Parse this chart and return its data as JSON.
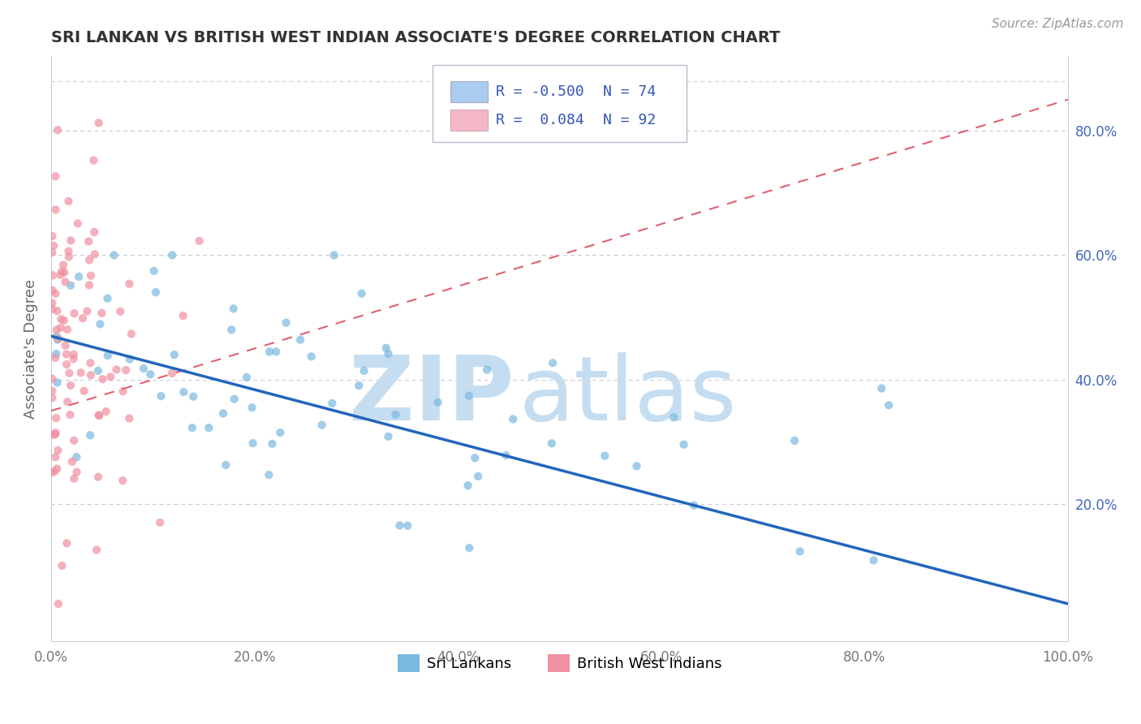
{
  "title": "SRI LANKAN VS BRITISH WEST INDIAN ASSOCIATE'S DEGREE CORRELATION CHART",
  "source_text": "Source: ZipAtlas.com",
  "ylabel": "Associate's Degree",
  "xlim": [
    0.0,
    1.0
  ],
  "ylim": [
    -0.02,
    0.92
  ],
  "xtick_labels": [
    "0.0%",
    "20.0%",
    "40.0%",
    "60.0%",
    "80.0%",
    "100.0%"
  ],
  "xtick_vals": [
    0.0,
    0.2,
    0.4,
    0.6,
    0.8,
    1.0
  ],
  "ytick_labels_right": [
    "20.0%",
    "40.0%",
    "60.0%",
    "80.0%"
  ],
  "ytick_vals_right": [
    0.2,
    0.4,
    0.6,
    0.8
  ],
  "legend_entries": [
    {
      "color": "#aaccee",
      "R": "-0.500",
      "N": "74"
    },
    {
      "color": "#f4b8c8",
      "R": " 0.084",
      "N": "92"
    }
  ],
  "legend_labels_bottom": [
    "Sri Lankans",
    "British West Indians"
  ],
  "sri_lankan_color": "#7ab8e0",
  "bwi_color": "#f090a0",
  "trend_sri_lankan_color": "#2266bb",
  "trend_bwi_color": "#e06070",
  "trend_sl_start_y": 0.47,
  "trend_sl_end_y": 0.04,
  "trend_bwi_start_y": 0.35,
  "trend_bwi_end_y": 0.85,
  "watermark_zip": "ZIP",
  "watermark_atlas": "atlas",
  "watermark_color": "#c5ddf0",
  "background_color": "#ffffff",
  "grid_color": "#ccccdd",
  "title_color": "#333333",
  "label_color": "#4466bb",
  "source_color": "#999999",
  "R_color": "#3355bb"
}
